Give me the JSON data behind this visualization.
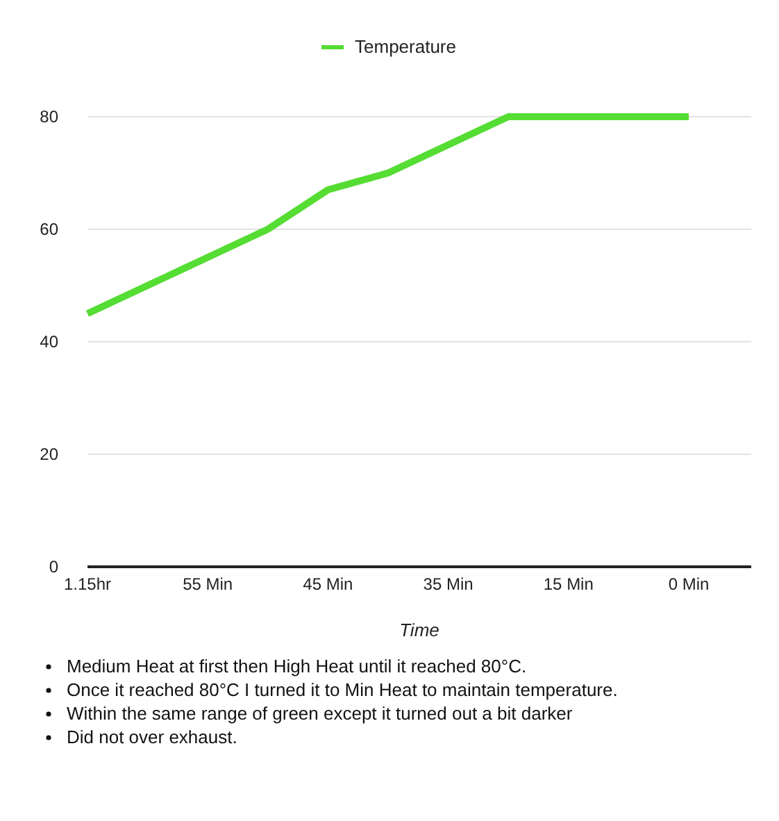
{
  "chart_data": {
    "type": "line",
    "xlabel": "Time",
    "categories": [
      "1.15hr",
      null,
      "55 Min",
      null,
      "45 Min",
      null,
      "35 Min",
      null,
      "15 Min",
      null,
      "0 Min"
    ],
    "series": [
      {
        "name": "Temperature",
        "color": "#55dd33",
        "values": [
          45,
          50,
          55,
          60,
          67,
          70,
          75,
          80,
          80,
          80,
          80
        ]
      }
    ],
    "ylim": [
      0,
      80
    ],
    "yticks": [
      0,
      20,
      40,
      60,
      80
    ],
    "grid": "y",
    "legend": "top",
    "marker": "none",
    "line_style": "solid",
    "annotations": [
      "Medium Heat at first then High Heat until it reached 80°C.",
      "Once it reached 80°C I turned it to Min Heat to maintain temperature.",
      "Within the same range of green except it turned out a bit darker",
      "Did not over exhaust."
    ]
  }
}
